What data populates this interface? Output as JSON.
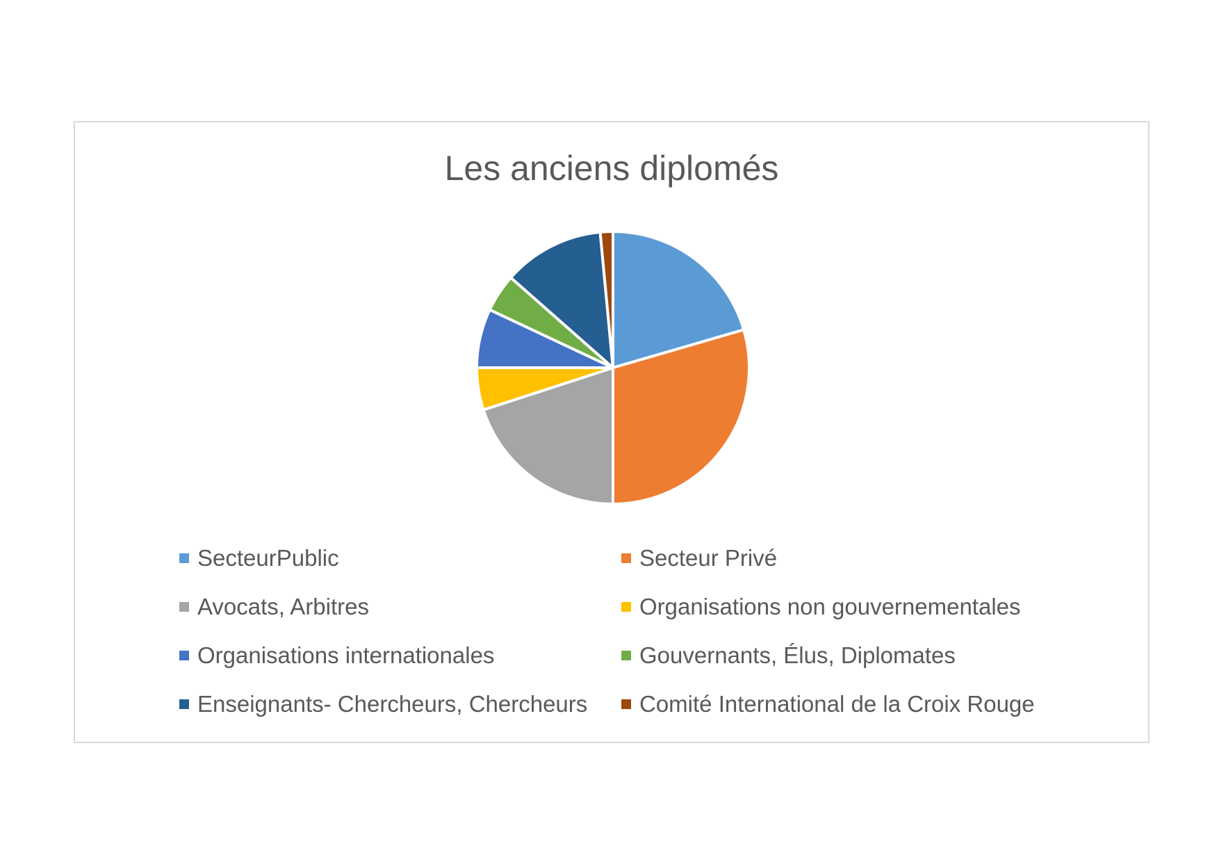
{
  "chart_data": {
    "type": "pie",
    "title": "Les anciens diplomés",
    "legend_position": "bottom",
    "slices": [
      {
        "label": "SecteurPublic",
        "value": 20.5,
        "color": "#5B9BD5"
      },
      {
        "label": "Secteur Privé",
        "value": 29.5,
        "color": "#ED7D31"
      },
      {
        "label": "Avocats, Arbitres",
        "value": 20.0,
        "color": "#A5A5A5"
      },
      {
        "label": "Organisations non gouvernementales",
        "value": 5.0,
        "color": "#FFC000"
      },
      {
        "label": "Organisations internationales",
        "value": 7.0,
        "color": "#4472C4"
      },
      {
        "label": "Gouvernants, Élus, Diplomates",
        "value": 4.5,
        "color": "#70AD47"
      },
      {
        "label": "Enseignants- Chercheurs, Chercheurs",
        "value": 12.0,
        "color": "#255E91"
      },
      {
        "label": "Comité International de la Croix Rouge",
        "value": 1.5,
        "color": "#9E480E"
      }
    ]
  }
}
